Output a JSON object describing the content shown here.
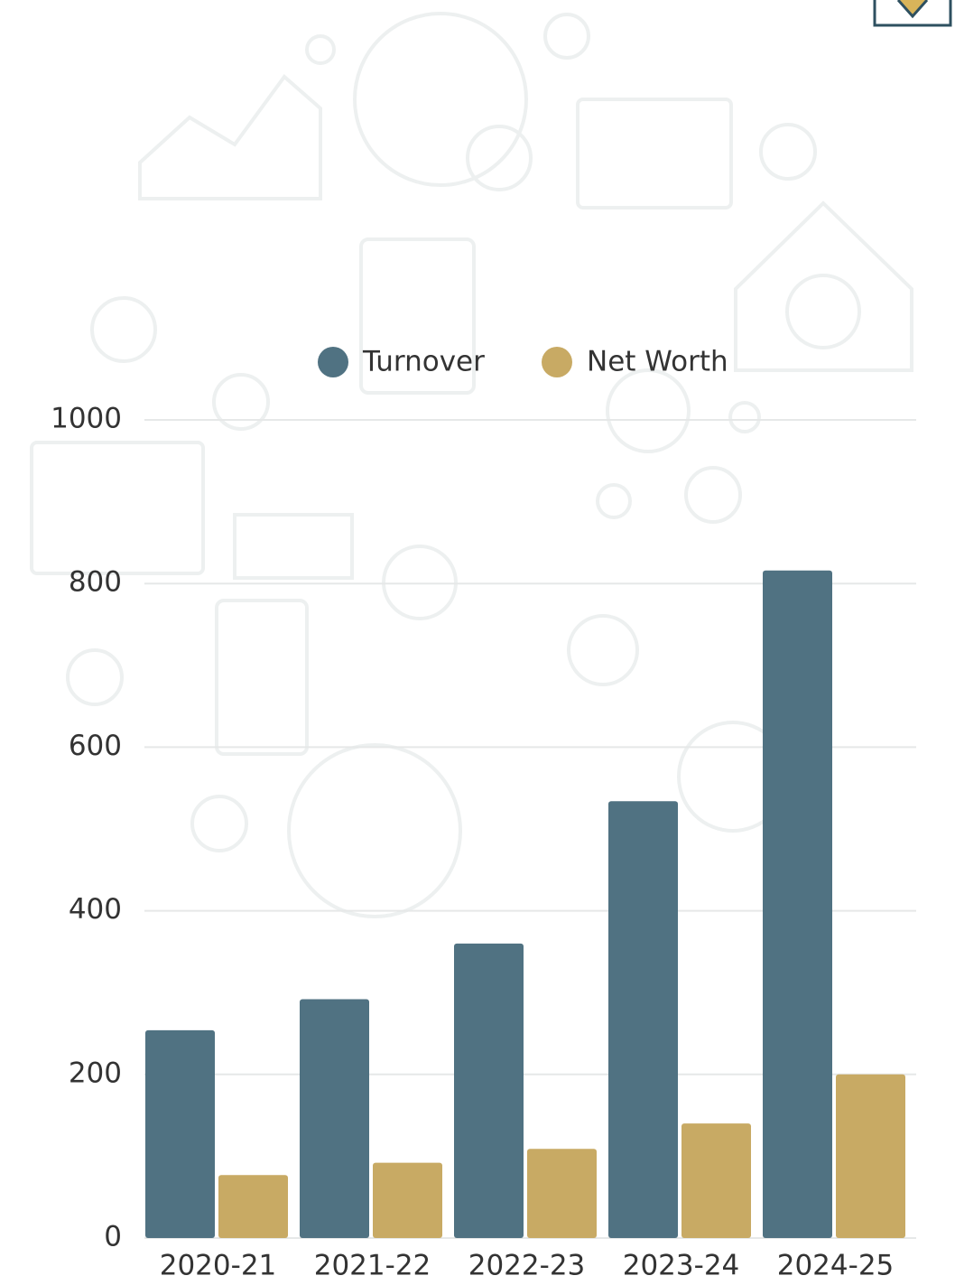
{
  "chart_data": {
    "type": "bar",
    "categories": [
      "2020-21",
      "2021-22",
      "2022-23",
      "2023-24",
      "2024-25"
    ],
    "series": [
      {
        "name": "Turnover",
        "color": "#507282",
        "values": [
          254,
          292,
          360,
          534,
          816
        ]
      },
      {
        "name": "Net Worth",
        "color": "#c8aa64",
        "values": [
          77,
          92,
          109,
          140,
          200
        ]
      }
    ],
    "ylim": [
      0,
      1000
    ],
    "yticks": [
      0,
      200,
      400,
      600,
      800,
      1000
    ],
    "grid": true
  }
}
